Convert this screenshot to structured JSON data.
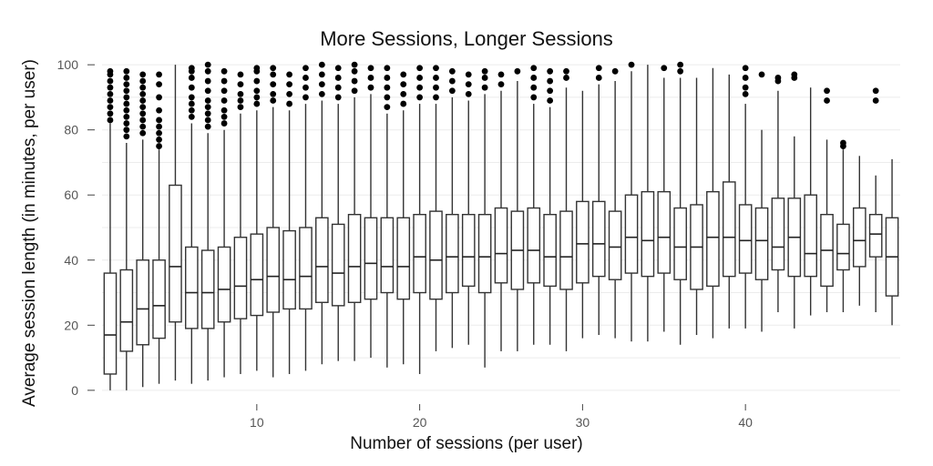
{
  "chart_data": {
    "type": "box",
    "title": "More Sessions, Longer Sessions",
    "xlabel": "Number of sessions (per user)",
    "ylabel": "Average session length (in minutes, per user)",
    "xlim": [
      0.5,
      49.5
    ],
    "ylim": [
      -2,
      102
    ],
    "x_ticks": [
      10,
      20,
      30,
      40
    ],
    "y_ticks": [
      0,
      20,
      40,
      60,
      80,
      100
    ],
    "grid": true,
    "legend": "none",
    "series": [
      {
        "x": 1,
        "min": 0,
        "q1": 5,
        "median": 17,
        "q3": 36,
        "max": 82,
        "outliers": [
          83,
          85,
          87,
          89,
          91,
          93,
          95,
          97,
          98
        ]
      },
      {
        "x": 2,
        "min": 0,
        "q1": 12,
        "median": 21,
        "q3": 37,
        "max": 76,
        "outliers": [
          78,
          80,
          82,
          84,
          86,
          88,
          90,
          92,
          94,
          96,
          98
        ]
      },
      {
        "x": 3,
        "min": 1,
        "q1": 14,
        "median": 25,
        "q3": 40,
        "max": 77,
        "outliers": [
          79,
          81,
          83,
          85,
          87,
          89,
          91,
          93,
          95,
          97
        ]
      },
      {
        "x": 4,
        "min": 2,
        "q1": 16,
        "median": 26,
        "q3": 40,
        "max": 74,
        "outliers": [
          75,
          77,
          79,
          81,
          83,
          86,
          90,
          94,
          97
        ]
      },
      {
        "x": 5,
        "min": 3,
        "q1": 21,
        "median": 38,
        "q3": 63,
        "max": 100,
        "outliers": []
      },
      {
        "x": 6,
        "min": 2,
        "q1": 19,
        "median": 30,
        "q3": 44,
        "max": 82,
        "outliers": [
          84,
          86,
          88,
          90,
          93,
          96,
          98,
          99
        ]
      },
      {
        "x": 7,
        "min": 3,
        "q1": 19,
        "median": 30,
        "q3": 43,
        "max": 79,
        "outliers": [
          81,
          83,
          85,
          87,
          89,
          92,
          95,
          98,
          100
        ]
      },
      {
        "x": 8,
        "min": 4,
        "q1": 21,
        "median": 31,
        "q3": 44,
        "max": 80,
        "outliers": [
          82,
          84,
          86,
          89,
          92,
          95,
          98
        ]
      },
      {
        "x": 9,
        "min": 5,
        "q1": 22,
        "median": 32,
        "q3": 47,
        "max": 85,
        "outliers": [
          87,
          89,
          91,
          94,
          97
        ]
      },
      {
        "x": 10,
        "min": 6,
        "q1": 23,
        "median": 34,
        "q3": 48,
        "max": 86,
        "outliers": [
          88,
          90,
          92,
          95,
          98,
          99
        ]
      },
      {
        "x": 11,
        "min": 4,
        "q1": 24,
        "median": 35,
        "q3": 50,
        "max": 87,
        "outliers": [
          89,
          91,
          94,
          97,
          99
        ]
      },
      {
        "x": 12,
        "min": 5,
        "q1": 25,
        "median": 34,
        "q3": 49,
        "max": 86,
        "outliers": [
          88,
          91,
          94,
          97
        ]
      },
      {
        "x": 13,
        "min": 6,
        "q1": 25,
        "median": 35,
        "q3": 50,
        "max": 88,
        "outliers": [
          90,
          93,
          96,
          99
        ]
      },
      {
        "x": 14,
        "min": 8,
        "q1": 27,
        "median": 38,
        "q3": 53,
        "max": 89,
        "outliers": [
          91,
          94,
          97,
          100
        ]
      },
      {
        "x": 15,
        "min": 9,
        "q1": 26,
        "median": 36,
        "q3": 51,
        "max": 88,
        "outliers": [
          90,
          93,
          96,
          99
        ]
      },
      {
        "x": 16,
        "min": 9,
        "q1": 27,
        "median": 38,
        "q3": 54,
        "max": 90,
        "outliers": [
          92,
          95,
          98,
          100
        ]
      },
      {
        "x": 17,
        "min": 10,
        "q1": 28,
        "median": 39,
        "q3": 53,
        "max": 91,
        "outliers": [
          93,
          96,
          99
        ]
      },
      {
        "x": 18,
        "min": 7,
        "q1": 30,
        "median": 38,
        "q3": 53,
        "max": 85,
        "outliers": [
          87,
          90,
          93,
          96,
          99
        ]
      },
      {
        "x": 19,
        "min": 8,
        "q1": 28,
        "median": 38,
        "q3": 53,
        "max": 86,
        "outliers": [
          88,
          91,
          94,
          97
        ]
      },
      {
        "x": 20,
        "min": 5,
        "q1": 30,
        "median": 41,
        "q3": 54,
        "max": 88,
        "outliers": [
          90,
          93,
          96,
          99
        ]
      },
      {
        "x": 21,
        "min": 12,
        "q1": 28,
        "median": 40,
        "q3": 55,
        "max": 88,
        "outliers": [
          90,
          93,
          96,
          99
        ]
      },
      {
        "x": 22,
        "min": 13,
        "q1": 30,
        "median": 41,
        "q3": 54,
        "max": 90,
        "outliers": [
          92,
          95,
          98
        ]
      },
      {
        "x": 23,
        "min": 14,
        "q1": 32,
        "median": 41,
        "q3": 54,
        "max": 89,
        "outliers": [
          91,
          94,
          97
        ]
      },
      {
        "x": 24,
        "min": 7,
        "q1": 30,
        "median": 41,
        "q3": 54,
        "max": 91,
        "outliers": [
          93,
          96,
          98
        ]
      },
      {
        "x": 25,
        "min": 12,
        "q1": 33,
        "median": 42,
        "q3": 56,
        "max": 92,
        "outliers": [
          94,
          97
        ]
      },
      {
        "x": 26,
        "min": 12,
        "q1": 31,
        "median": 43,
        "q3": 55,
        "max": 95,
        "outliers": [
          98
        ]
      },
      {
        "x": 27,
        "min": 14,
        "q1": 33,
        "median": 43,
        "q3": 56,
        "max": 88,
        "outliers": [
          90,
          93,
          96,
          99
        ]
      },
      {
        "x": 28,
        "min": 14,
        "q1": 32,
        "median": 41,
        "q3": 54,
        "max": 87,
        "outliers": [
          89,
          92,
          95,
          98
        ]
      },
      {
        "x": 29,
        "min": 12,
        "q1": 31,
        "median": 41,
        "q3": 55,
        "max": 93,
        "outliers": [
          96,
          98
        ]
      },
      {
        "x": 30,
        "min": 16,
        "q1": 33,
        "median": 45,
        "q3": 58,
        "max": 92,
        "outliers": []
      },
      {
        "x": 31,
        "min": 17,
        "q1": 35,
        "median": 45,
        "q3": 58,
        "max": 94,
        "outliers": [
          96,
          99
        ]
      },
      {
        "x": 32,
        "min": 16,
        "q1": 34,
        "median": 44,
        "q3": 55,
        "max": 95,
        "outliers": [
          98
        ]
      },
      {
        "x": 33,
        "min": 15,
        "q1": 36,
        "median": 47,
        "q3": 60,
        "max": 98,
        "outliers": [
          100
        ]
      },
      {
        "x": 34,
        "min": 15,
        "q1": 35,
        "median": 46,
        "q3": 61,
        "max": 100,
        "outliers": []
      },
      {
        "x": 35,
        "min": 18,
        "q1": 36,
        "median": 47,
        "q3": 61,
        "max": 96,
        "outliers": [
          99
        ]
      },
      {
        "x": 36,
        "min": 14,
        "q1": 34,
        "median": 44,
        "q3": 56,
        "max": 96,
        "outliers": [
          98,
          100
        ]
      },
      {
        "x": 37,
        "min": 17,
        "q1": 31,
        "median": 44,
        "q3": 57,
        "max": 96,
        "outliers": []
      },
      {
        "x": 38,
        "min": 16,
        "q1": 32,
        "median": 47,
        "q3": 61,
        "max": 99,
        "outliers": []
      },
      {
        "x": 39,
        "min": 19,
        "q1": 35,
        "median": 47,
        "q3": 64,
        "max": 97,
        "outliers": []
      },
      {
        "x": 40,
        "min": 19,
        "q1": 36,
        "median": 46,
        "q3": 57,
        "max": 88,
        "outliers": [
          91,
          93,
          96,
          99
        ]
      },
      {
        "x": 41,
        "min": 18,
        "q1": 34,
        "median": 46,
        "q3": 56,
        "max": 80,
        "outliers": [
          97
        ]
      },
      {
        "x": 42,
        "min": 24,
        "q1": 37,
        "median": 44,
        "q3": 59,
        "max": 92,
        "outliers": [
          95,
          96
        ]
      },
      {
        "x": 43,
        "min": 19,
        "q1": 35,
        "median": 47,
        "q3": 59,
        "max": 78,
        "outliers": [
          96,
          97
        ]
      },
      {
        "x": 44,
        "min": 23,
        "q1": 35,
        "median": 42,
        "q3": 60,
        "max": 93,
        "outliers": []
      },
      {
        "x": 45,
        "min": 24,
        "q1": 32,
        "median": 43,
        "q3": 54,
        "max": 77,
        "outliers": [
          89,
          92
        ]
      },
      {
        "x": 46,
        "min": 24,
        "q1": 37,
        "median": 42,
        "q3": 51,
        "max": 74,
        "outliers": [
          75,
          76
        ]
      },
      {
        "x": 47,
        "min": 26,
        "q1": 38,
        "median": 46,
        "q3": 56,
        "max": 72,
        "outliers": []
      },
      {
        "x": 48,
        "min": 24,
        "q1": 41,
        "median": 48,
        "q3": 54,
        "max": 66,
        "outliers": [
          89,
          92
        ]
      },
      {
        "x": 49,
        "min": 20,
        "q1": 29,
        "median": 41,
        "q3": 53,
        "max": 71,
        "outliers": []
      }
    ]
  }
}
